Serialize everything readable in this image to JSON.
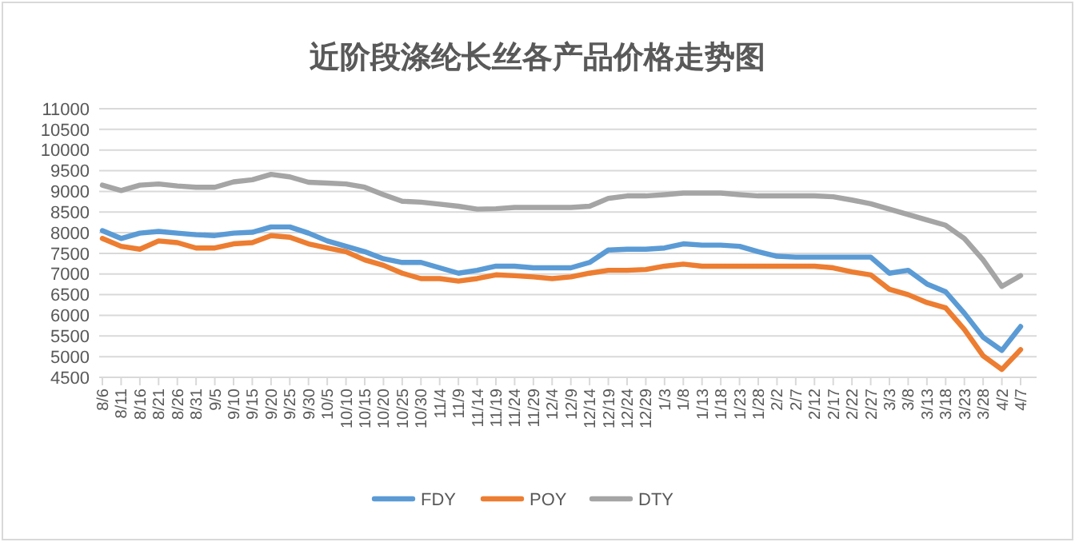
{
  "chart_data": {
    "type": "line",
    "title": "近阶段涤纶长丝各产品价格走势图",
    "categories": [
      "8/6",
      "8/11",
      "8/16",
      "8/21",
      "8/26",
      "8/31",
      "9/5",
      "9/10",
      "9/15",
      "9/20",
      "9/25",
      "9/30",
      "10/5",
      "10/10",
      "10/15",
      "10/20",
      "10/25",
      "10/30",
      "11/4",
      "11/9",
      "11/14",
      "11/19",
      "11/24",
      "11/29",
      "12/4",
      "12/9",
      "12/14",
      "12/19",
      "12/24",
      "12/29",
      "1/3",
      "1/8",
      "1/13",
      "1/18",
      "1/23",
      "1/28",
      "2/2",
      "2/7",
      "2/12",
      "2/17",
      "2/22",
      "2/27",
      "3/3",
      "3/8",
      "3/13",
      "3/18",
      "3/23",
      "3/28",
      "4/2",
      "4/7"
    ],
    "series": [
      {
        "name": "FDY",
        "color": "#5b9bd5",
        "values": [
          8050,
          7860,
          7990,
          8030,
          7990,
          7950,
          7930,
          7990,
          8010,
          8140,
          8140,
          7990,
          7800,
          7670,
          7540,
          7370,
          7280,
          7280,
          7150,
          7020,
          7090,
          7190,
          7190,
          7150,
          7150,
          7150,
          7280,
          7580,
          7600,
          7600,
          7630,
          7730,
          7700,
          7700,
          7670,
          7540,
          7430,
          7410,
          7410,
          7410,
          7410,
          7410,
          7020,
          7090,
          6760,
          6570,
          6050,
          5470,
          5150,
          5730
        ]
      },
      {
        "name": "POY",
        "color": "#ed7d31",
        "values": [
          7860,
          7670,
          7600,
          7800,
          7760,
          7630,
          7630,
          7730,
          7760,
          7930,
          7890,
          7730,
          7630,
          7540,
          7340,
          7210,
          7020,
          6890,
          6890,
          6830,
          6890,
          6980,
          6960,
          6930,
          6890,
          6930,
          7020,
          7090,
          7090,
          7110,
          7190,
          7240,
          7190,
          7190,
          7190,
          7190,
          7190,
          7190,
          7190,
          7150,
          7050,
          6980,
          6630,
          6500,
          6310,
          6180,
          5660,
          5020,
          4690,
          5170
        ]
      },
      {
        "name": "DTY",
        "color": "#a5a5a5",
        "values": [
          9150,
          9020,
          9150,
          9180,
          9130,
          9100,
          9100,
          9230,
          9280,
          9410,
          9350,
          9220,
          9200,
          9180,
          9100,
          8920,
          8760,
          8740,
          8690,
          8640,
          8570,
          8580,
          8610,
          8610,
          8610,
          8610,
          8640,
          8830,
          8890,
          8890,
          8920,
          8960,
          8960,
          8960,
          8920,
          8890,
          8890,
          8890,
          8890,
          8870,
          8790,
          8700,
          8570,
          8440,
          8310,
          8180,
          7860,
          7340,
          6700,
          6960
        ]
      }
    ],
    "ylim": [
      4500,
      11000
    ],
    "yticks": [
      4500,
      5000,
      5500,
      6000,
      6500,
      7000,
      7500,
      8000,
      8500,
      9000,
      9500,
      10000,
      10500,
      11000
    ],
    "grid": "y",
    "legend": "bottom",
    "marker": "none",
    "line_style": "solid"
  }
}
